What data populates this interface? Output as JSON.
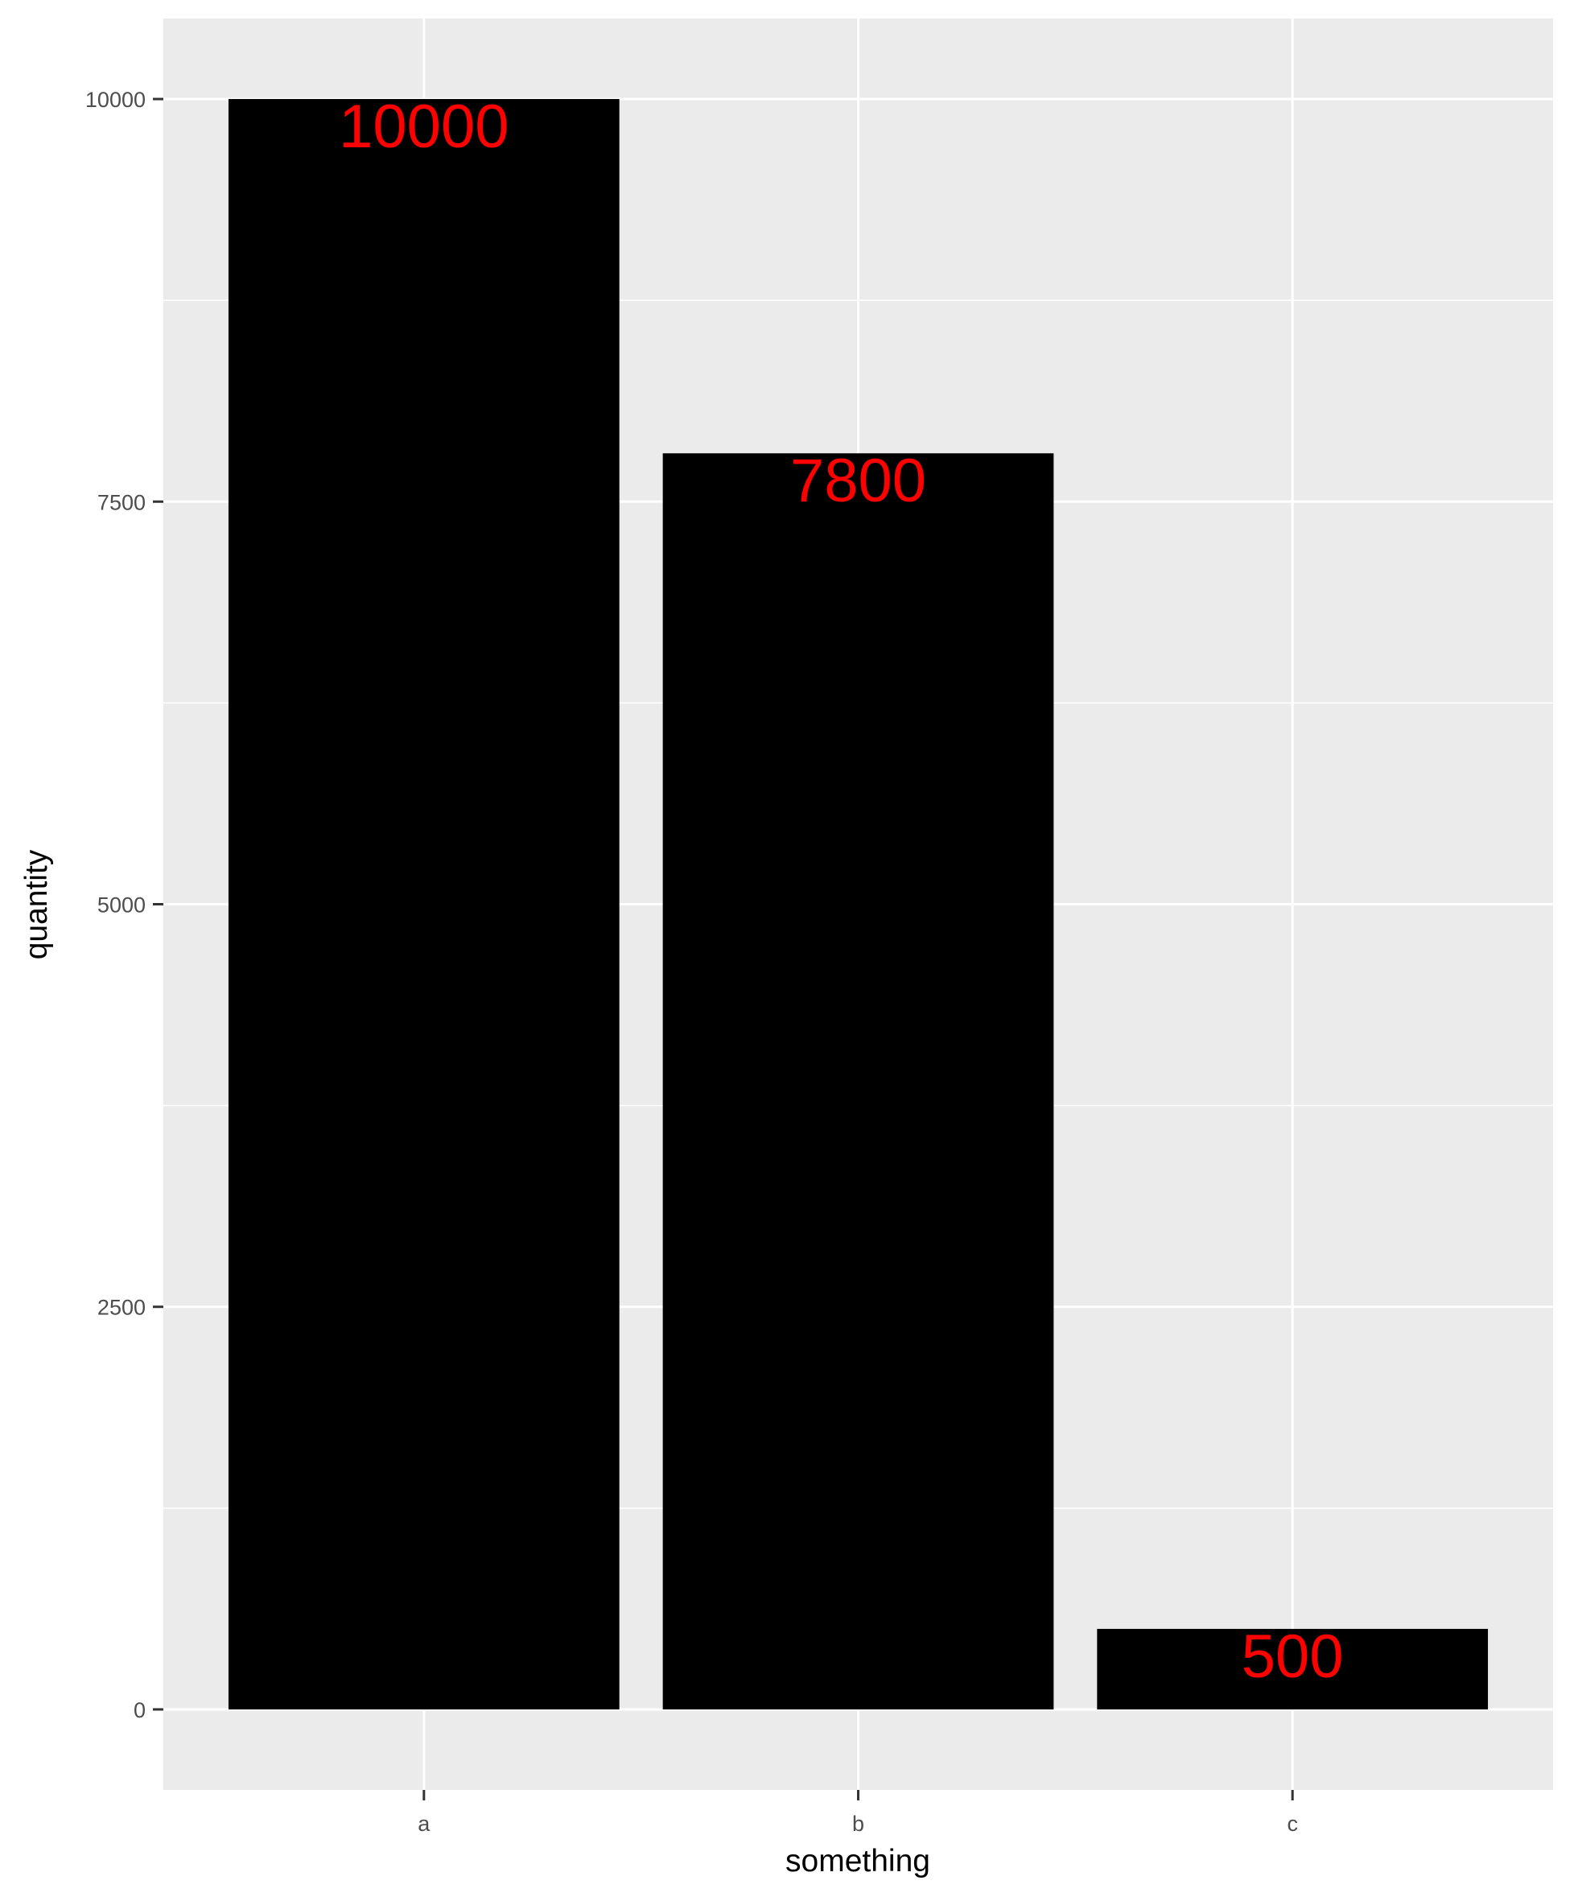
{
  "chart_data": {
    "type": "bar",
    "title": "",
    "xlabel": "something",
    "ylabel": "quantity",
    "categories": [
      "a",
      "b",
      "c"
    ],
    "values": [
      10000,
      7800,
      500
    ],
    "data_labels": [
      "10000",
      "7800",
      "500"
    ],
    "ylim": [
      -500,
      10500
    ],
    "yticks": [
      0,
      2500,
      5000,
      7500,
      10000
    ],
    "ytick_labels": [
      "0",
      "2500",
      "5000",
      "7500",
      "10000"
    ],
    "grid": true,
    "legend": "none",
    "colors": {
      "bar": "#000000",
      "label": "#ff0000",
      "panel": "#ebebeb",
      "grid": "#ffffff",
      "text": "#4d4d4d"
    }
  }
}
